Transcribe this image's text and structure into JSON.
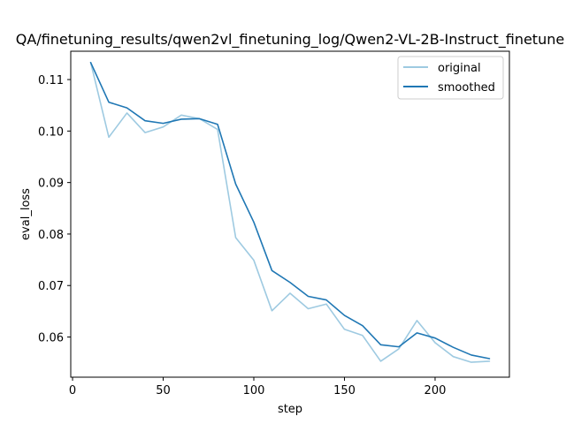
{
  "chart_data": {
    "type": "line",
    "title": "QA/finetuning_results/qwen2vl_finetuning_log/Qwen2-VL-2B-Instruct_finetune",
    "xlabel": "step",
    "ylabel": "eval_loss",
    "xlim": [
      -1,
      241
    ],
    "ylim": [
      0.0522,
      0.1155
    ],
    "xticks": [
      0,
      50,
      100,
      150,
      200
    ],
    "yticks": [
      0.06,
      0.07,
      0.08,
      0.09,
      0.1,
      0.11
    ],
    "ytick_labels": [
      "0.06",
      "0.07",
      "0.08",
      "0.09",
      "0.10",
      "0.11"
    ],
    "grid": false,
    "legend_position": "top-right",
    "x": [
      10,
      20,
      30,
      40,
      50,
      60,
      70,
      80,
      90,
      100,
      110,
      120,
      130,
      140,
      150,
      160,
      170,
      180,
      190,
      200,
      210,
      220,
      230
    ],
    "series": [
      {
        "name": "original",
        "color": "#9ecae1",
        "values": [
          0.1133,
          0.0988,
          0.1035,
          0.0997,
          0.1008,
          0.1031,
          0.1024,
          0.1003,
          0.0793,
          0.0749,
          0.0651,
          0.0685,
          0.0655,
          0.0664,
          0.0615,
          0.0603,
          0.0553,
          0.0577,
          0.0632,
          0.0589,
          0.0562,
          0.0551,
          0.0553
        ]
      },
      {
        "name": "smoothed",
        "color": "#1f77b4",
        "values": [
          0.1133,
          0.1056,
          0.1045,
          0.102,
          0.1015,
          0.1023,
          0.1024,
          0.1013,
          0.0897,
          0.0823,
          0.0729,
          0.0706,
          0.0679,
          0.0672,
          0.0642,
          0.0622,
          0.0585,
          0.0581,
          0.0608,
          0.0598,
          0.058,
          0.0565,
          0.0558
        ]
      }
    ]
  }
}
